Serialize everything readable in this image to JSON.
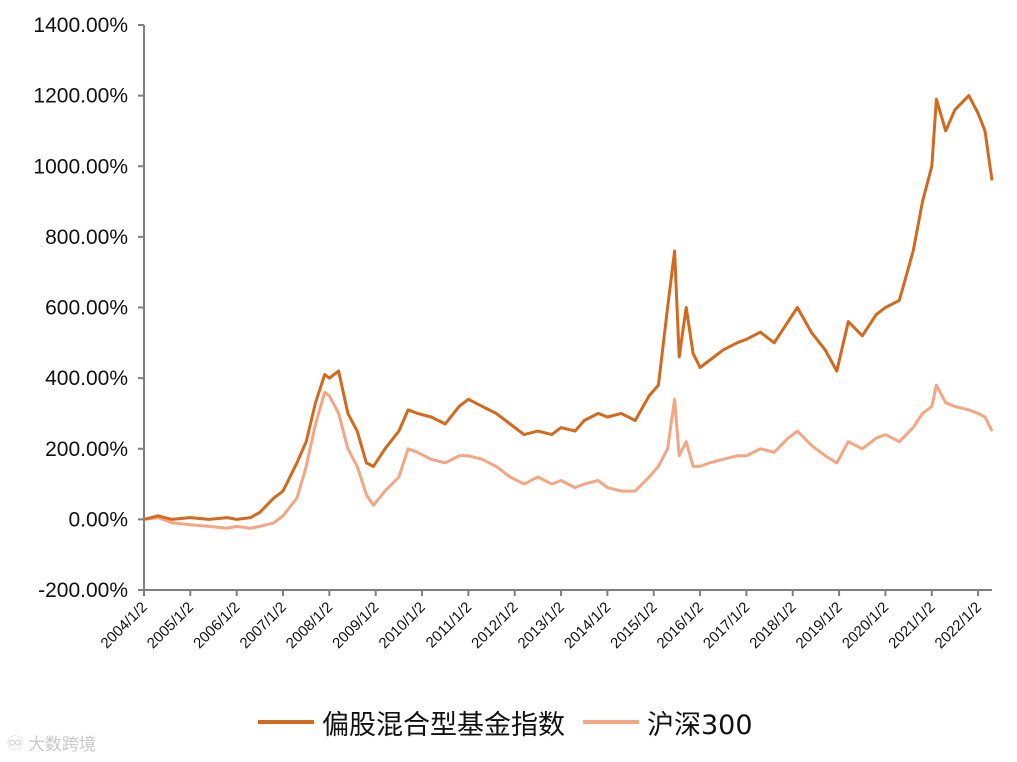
{
  "chart_data": {
    "type": "line",
    "title": "",
    "xlabel": "",
    "ylabel": "",
    "ylim": [
      -200,
      1400
    ],
    "y_ticks": [
      "1400.00%",
      "1200.00%",
      "1000.00%",
      "800.00%",
      "600.00%",
      "400.00%",
      "200.00%",
      "0.00%",
      "-200.00%"
    ],
    "y_tick_values": [
      1400,
      1200,
      1000,
      800,
      600,
      400,
      200,
      0,
      -200
    ],
    "xlim": [
      2004.0,
      2022.3
    ],
    "x_ticks": [
      "2004/1/2",
      "2005/1/2",
      "2006/1/2",
      "2007/1/2",
      "2008/1/2",
      "2009/1/2",
      "2010/1/2",
      "2011/1/2",
      "2012/1/2",
      "2013/1/2",
      "2014/1/2",
      "2015/1/2",
      "2016/1/2",
      "2017/1/2",
      "2018/1/2",
      "2019/1/2",
      "2020/1/2",
      "2021/1/2",
      "2022/1/2"
    ],
    "grid": false,
    "legend_position": "bottom",
    "series": [
      {
        "name": "偏股混合型基金指数",
        "color": "#D2691E",
        "x": [
          2004.0,
          2004.3,
          2004.6,
          2005.0,
          2005.4,
          2005.8,
          2006.0,
          2006.3,
          2006.5,
          2006.8,
          2007.0,
          2007.3,
          2007.5,
          2007.7,
          2007.9,
          2008.0,
          2008.2,
          2008.4,
          2008.6,
          2008.8,
          2008.95,
          2009.2,
          2009.5,
          2009.7,
          2009.9,
          2010.2,
          2010.5,
          2010.8,
          2011.0,
          2011.3,
          2011.6,
          2011.9,
          2012.2,
          2012.5,
          2012.8,
          2013.0,
          2013.3,
          2013.5,
          2013.8,
          2014.0,
          2014.3,
          2014.6,
          2014.9,
          2015.1,
          2015.3,
          2015.45,
          2015.55,
          2015.7,
          2015.85,
          2016.0,
          2016.2,
          2016.5,
          2016.8,
          2017.0,
          2017.3,
          2017.6,
          2017.9,
          2018.1,
          2018.4,
          2018.7,
          2018.95,
          2019.2,
          2019.5,
          2019.8,
          2020.0,
          2020.3,
          2020.6,
          2020.8,
          2021.0,
          2021.1,
          2021.3,
          2021.5,
          2021.8,
          2022.0,
          2022.15,
          2022.3
        ],
        "y": [
          0,
          10,
          0,
          5,
          0,
          5,
          0,
          5,
          20,
          60,
          80,
          160,
          220,
          330,
          410,
          400,
          420,
          300,
          250,
          160,
          150,
          200,
          250,
          310,
          300,
          290,
          270,
          320,
          340,
          320,
          300,
          270,
          240,
          250,
          240,
          260,
          250,
          280,
          300,
          290,
          300,
          280,
          350,
          380,
          600,
          760,
          460,
          600,
          470,
          430,
          450,
          480,
          500,
          510,
          530,
          500,
          560,
          600,
          530,
          480,
          420,
          560,
          520,
          580,
          600,
          620,
          760,
          900,
          1000,
          1190,
          1100,
          1160,
          1200,
          1150,
          1100,
          960
        ]
      },
      {
        "name": "沪深300",
        "color": "#F4A582",
        "x": [
          2004.0,
          2004.3,
          2004.6,
          2005.0,
          2005.4,
          2005.8,
          2006.0,
          2006.3,
          2006.5,
          2006.8,
          2007.0,
          2007.3,
          2007.5,
          2007.7,
          2007.9,
          2008.0,
          2008.2,
          2008.4,
          2008.6,
          2008.8,
          2008.95,
          2009.2,
          2009.5,
          2009.7,
          2009.9,
          2010.2,
          2010.5,
          2010.8,
          2011.0,
          2011.3,
          2011.6,
          2011.9,
          2012.2,
          2012.5,
          2012.8,
          2013.0,
          2013.3,
          2013.5,
          2013.8,
          2014.0,
          2014.3,
          2014.6,
          2014.9,
          2015.1,
          2015.3,
          2015.45,
          2015.55,
          2015.7,
          2015.85,
          2016.0,
          2016.2,
          2016.5,
          2016.8,
          2017.0,
          2017.3,
          2017.6,
          2017.9,
          2018.1,
          2018.4,
          2018.7,
          2018.95,
          2019.2,
          2019.5,
          2019.8,
          2020.0,
          2020.3,
          2020.6,
          2020.8,
          2021.0,
          2021.1,
          2021.3,
          2021.5,
          2021.8,
          2022.0,
          2022.15,
          2022.3
        ],
        "y": [
          0,
          5,
          -10,
          -15,
          -20,
          -25,
          -20,
          -25,
          -20,
          -10,
          10,
          60,
          150,
          270,
          360,
          350,
          300,
          200,
          150,
          70,
          40,
          80,
          120,
          200,
          190,
          170,
          160,
          180,
          180,
          170,
          150,
          120,
          100,
          120,
          100,
          110,
          90,
          100,
          110,
          90,
          80,
          80,
          120,
          150,
          200,
          340,
          180,
          220,
          150,
          150,
          160,
          170,
          180,
          180,
          200,
          190,
          230,
          250,
          210,
          180,
          160,
          220,
          200,
          230,
          240,
          220,
          260,
          300,
          320,
          380,
          330,
          320,
          310,
          300,
          290,
          250
        ]
      }
    ]
  },
  "legend": {
    "items": [
      {
        "label": "偏股混合型基金指数",
        "color": "#D2691E"
      },
      {
        "label": "沪深300",
        "color": "#F4A582"
      }
    ]
  },
  "watermark": {
    "icon": "watermark-logo-icon",
    "text": "大数跨境"
  }
}
